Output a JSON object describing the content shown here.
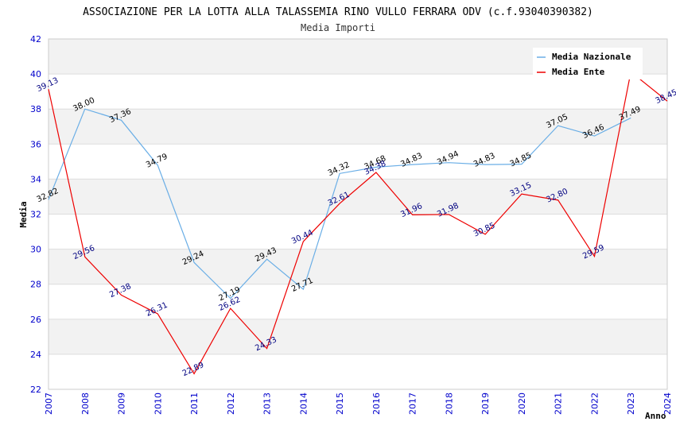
{
  "chart_data": {
    "type": "line",
    "title": "ASSOCIAZIONE PER LA LOTTA ALLA TALASSEMIA RINO VULLO FERRARA ODV (c.f.93040390382)",
    "subtitle": "Media Importi",
    "xlabel": "Anno",
    "ylabel": "Media",
    "ylim": [
      22,
      42
    ],
    "yticks": [
      22,
      24,
      26,
      28,
      30,
      32,
      34,
      36,
      38,
      40,
      42
    ],
    "x": [
      "2007",
      "2008",
      "2009",
      "2010",
      "2011",
      "2012",
      "2013",
      "2014",
      "2015",
      "2016",
      "2017",
      "2018",
      "2019",
      "2020",
      "2021",
      "2022",
      "2023",
      "2024"
    ],
    "grid": true,
    "legend_position": "top-right",
    "series": [
      {
        "name": "Media Nazionale",
        "color": "#6aaee6",
        "values": [
          32.82,
          38.0,
          37.36,
          34.79,
          29.24,
          27.19,
          29.43,
          27.71,
          34.32,
          34.68,
          34.83,
          34.94,
          34.83,
          34.85,
          37.05,
          36.46,
          37.49,
          null
        ],
        "labels": [
          "32.82",
          "38.00",
          "37.36",
          "34.79",
          "29.24",
          "27.19",
          "29.43",
          "27.71",
          "34.32",
          "34.68",
          "34.83",
          "34.94",
          "34.83",
          "34.85",
          "37.05",
          "36.46",
          "37.49",
          ""
        ]
      },
      {
        "name": "Media Ente",
        "color": "#ee0000",
        "values": [
          39.13,
          29.56,
          27.38,
          26.31,
          22.89,
          26.62,
          24.33,
          30.44,
          32.61,
          34.38,
          31.96,
          31.98,
          30.85,
          33.15,
          32.8,
          29.59,
          40.12,
          38.45
        ],
        "labels": [
          "39.13",
          "29.56",
          "27.38",
          "26.31",
          "22.89",
          "26.62",
          "24.33",
          "30.44",
          "32.61",
          "34.38",
          "31.96",
          "31.98",
          "30.85",
          "33.15",
          "32.80",
          "29.59",
          "",
          "38.45"
        ]
      }
    ]
  }
}
